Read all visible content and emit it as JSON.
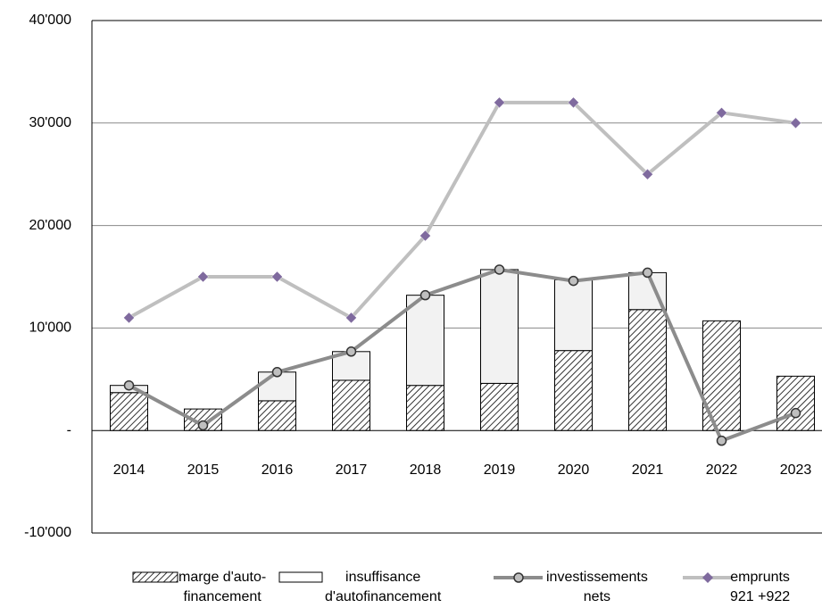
{
  "chart_data": {
    "type": "bar",
    "categories": [
      "2014",
      "2015",
      "2016",
      "2017",
      "2018",
      "2019",
      "2020",
      "2021",
      "2022",
      "2023"
    ],
    "series": [
      {
        "name": "marge d'auto-\nfinancement",
        "type": "bar",
        "color": "#333333",
        "values": [
          3700,
          2100,
          2900,
          4900,
          4400,
          4600,
          7800,
          11800,
          10700,
          5300
        ]
      },
      {
        "name": "insuffisance\nd'autofinancement",
        "type": "bar",
        "color": "#f2f2f2",
        "values": [
          700,
          0,
          2800,
          2800,
          8800,
          11100,
          6900,
          3600,
          0,
          0
        ]
      },
      {
        "name": "investissements\nnets",
        "type": "line",
        "color": "#8c8c8c",
        "values": [
          4400,
          500,
          5700,
          7700,
          13200,
          15700,
          14600,
          15400,
          -1000,
          1700
        ]
      },
      {
        "name": "emprunts\n921 +922",
        "type": "line",
        "color": "#bfbfbf",
        "marker_color": "#7f6a9e",
        "values": [
          11000,
          15000,
          15000,
          11000,
          19000,
          32000,
          32000,
          25000,
          31000,
          30000
        ]
      }
    ],
    "ylim": [
      -10000,
      40000
    ],
    "yticks": [
      {
        "value": -10000,
        "label": "-10'000"
      },
      {
        "value": 0,
        "label": "-"
      },
      {
        "value": 10000,
        "label": "10'000"
      },
      {
        "value": 20000,
        "label": "20'000"
      },
      {
        "value": 30000,
        "label": "30'000"
      },
      {
        "value": 40000,
        "label": "40'000"
      }
    ],
    "grid": true
  }
}
